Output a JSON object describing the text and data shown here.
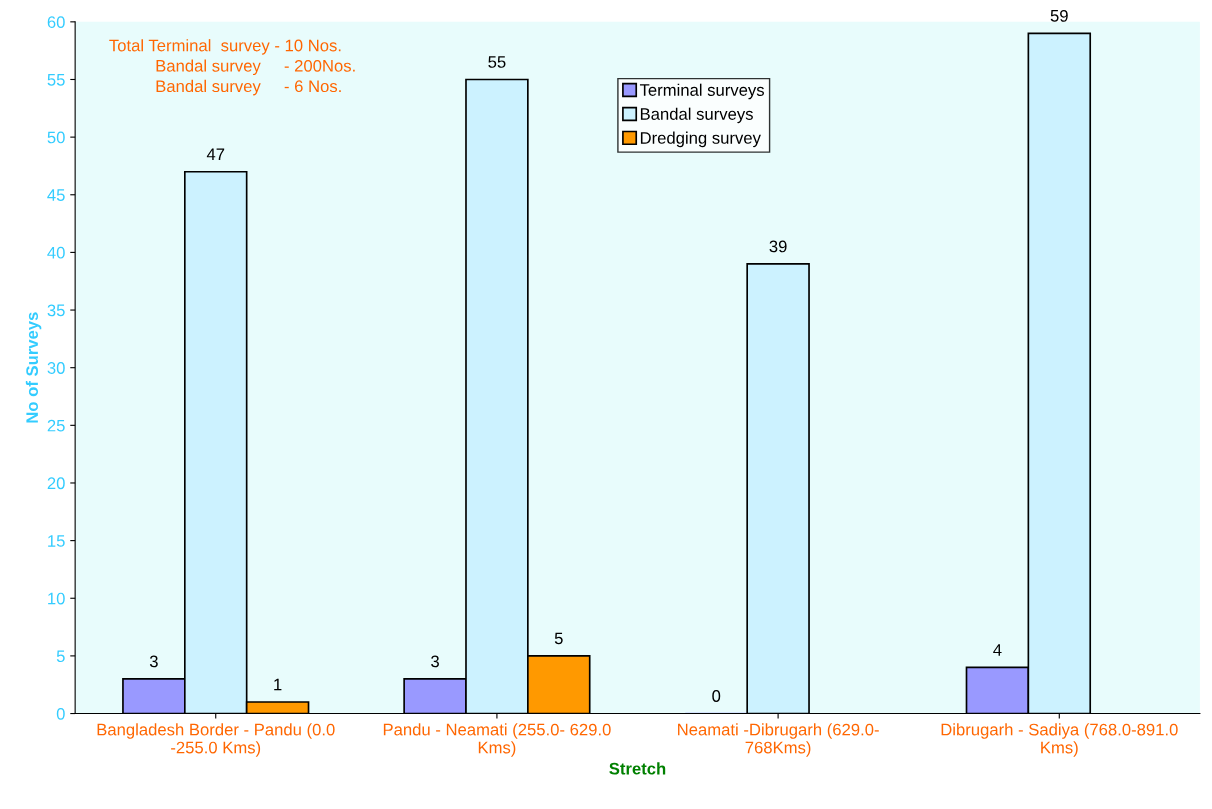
{
  "chart_data": {
    "type": "bar",
    "xlabel": "Stretch",
    "ylabel": "No of Surveys",
    "categories": [
      "Bangladesh Border - Pandu (0.0\n-255.0 Kms)",
      "Pandu - Neamati (255.0- 629.0\nKms)",
      "Neamati -Dibrugarh (629.0-\n768Kms)",
      "Dibrugarh - Sadiya (768.0-891.0\nKms)"
    ],
    "series": [
      {
        "name": "Terminal surveys",
        "color": "#9999ff",
        "values": [
          3,
          3,
          0,
          4
        ]
      },
      {
        "name": "Bandal surveys",
        "color": "#ccf2ff",
        "values": [
          47,
          55,
          39,
          59
        ]
      },
      {
        "name": "Dredging survey",
        "color": "#ff9900",
        "values": [
          1,
          5,
          null,
          null
        ]
      }
    ],
    "ylim": [
      0,
      60
    ],
    "yticks": [
      0,
      5,
      10,
      15,
      20,
      25,
      30,
      35,
      40,
      45,
      50,
      55,
      60
    ],
    "data_labels": true,
    "grid": false,
    "legend": "top",
    "annotations": [
      "Total Terminal  survey - 10 Nos.\n          Bandal survey     - 200Nos.\n          Bandal survey     - 6 Nos."
    ]
  }
}
